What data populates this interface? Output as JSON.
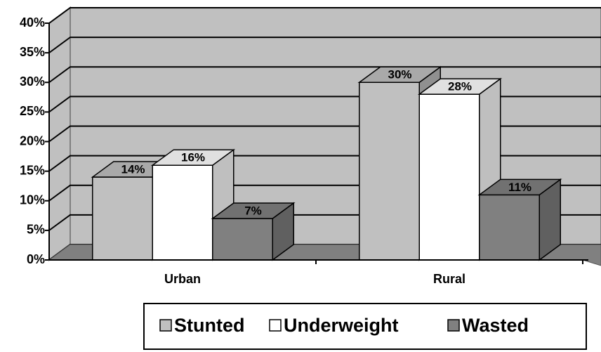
{
  "chart_data": {
    "type": "bar3d",
    "categories": [
      "Urban",
      "Rural"
    ],
    "series": [
      {
        "name": "Stunted",
        "color": "#c0c0c0",
        "values": [
          14,
          30
        ],
        "value_labels": [
          "14%",
          "30%"
        ]
      },
      {
        "name": "Underweight",
        "color": "#ffffff",
        "values": [
          16,
          28
        ],
        "value_labels": [
          "16%",
          "28%"
        ]
      },
      {
        "name": "Wasted",
        "color": "#808080",
        "values": [
          7,
          11
        ],
        "value_labels": [
          "7%",
          "11%"
        ]
      }
    ],
    "ylim": [
      0,
      40
    ],
    "yticks": [
      {
        "value": 0,
        "label": "0%"
      },
      {
        "value": 5,
        "label": "5%"
      },
      {
        "value": 10,
        "label": "10%"
      },
      {
        "value": 15,
        "label": "15%"
      },
      {
        "value": 20,
        "label": "20%"
      },
      {
        "value": 25,
        "label": "25%"
      },
      {
        "value": 30,
        "label": "30%"
      },
      {
        "value": 35,
        "label": "35%"
      },
      {
        "value": 40,
        "label": "40%"
      }
    ],
    "grid": true,
    "legend": "bottom"
  }
}
